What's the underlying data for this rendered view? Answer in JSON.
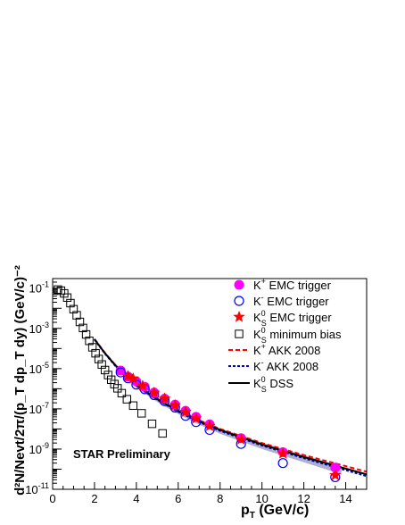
{
  "chart_data": {
    "type": "scatter",
    "title": "",
    "annotation": "STAR Preliminary",
    "xlabel": {
      "main": "p",
      "sub": "T",
      "unit": " (GeV/c)"
    },
    "ylabel": {
      "text": "d²N/Nevt/2π/(p_T dp_T dy) (GeV/c)⁻²"
    },
    "xlim": [
      0,
      15
    ],
    "ylim": [
      1e-11,
      0.3
    ],
    "yscale": "log",
    "x_ticks": [
      0,
      2,
      4,
      6,
      8,
      10,
      12,
      14
    ],
    "y_ticks": [
      {
        "value": 1e-11,
        "base": "10",
        "exp": "-11"
      },
      {
        "value": 1e-09,
        "base": "10",
        "exp": "-9"
      },
      {
        "value": 1e-07,
        "base": "10",
        "exp": "-7"
      },
      {
        "value": 1e-05,
        "base": "10",
        "exp": "-5"
      },
      {
        "value": 0.001,
        "base": "10",
        "exp": "-3"
      },
      {
        "value": 0.1,
        "base": "10",
        "exp": "-1"
      }
    ],
    "legend_position": "top-right",
    "series": [
      {
        "name": "K+ EMC trigger",
        "legend": {
          "pre": "K",
          "sup": "+",
          "sub": "",
          "post": " EMC trigger"
        },
        "marker": "filled-circle",
        "color": "#ff00ff",
        "x": [
          3.25,
          3.6,
          4.0,
          4.4,
          4.85,
          5.35,
          5.85,
          6.35,
          6.85,
          7.5,
          9.0,
          11.0,
          13.5
        ],
        "y": [
          8e-06,
          4e-06,
          2.3e-06,
          1.25e-06,
          6.5e-07,
          3.2e-07,
          1.6e-07,
          8e-08,
          4e-08,
          1.7e-08,
          3.5e-09,
          7e-10,
          1.2e-10
        ]
      },
      {
        "name": "K- EMC trigger",
        "legend": {
          "pre": "K",
          "sup": "-",
          "sub": "",
          "post": " EMC trigger"
        },
        "marker": "open-circle",
        "color": "#0000ff",
        "x": [
          3.25,
          3.6,
          4.0,
          4.4,
          4.85,
          5.35,
          5.85,
          6.35,
          6.85,
          7.5,
          9.0,
          11.0,
          13.5
        ],
        "y": [
          6.5e-06,
          3.3e-06,
          1.6e-06,
          9.5e-07,
          4.8e-07,
          2.4e-07,
          1.15e-07,
          4.5e-08,
          2.2e-08,
          9e-09,
          1.8e-09,
          2e-10,
          4e-11
        ]
      },
      {
        "name": "K0S EMC trigger",
        "legend": {
          "pre": "K",
          "sup": "0",
          "sub": "S",
          "post": " EMC trigger"
        },
        "marker": "filled-star",
        "color": "#ff0000",
        "x": [
          3.6,
          3.85,
          4.3,
          4.85,
          5.35,
          5.85,
          6.35,
          6.85,
          7.5,
          9.0,
          11.0,
          13.5
        ],
        "y": [
          4.2e-06,
          3.2e-06,
          1.4e-06,
          6.3e-07,
          3.2e-07,
          1.5e-07,
          7e-08,
          3.3e-08,
          1.4e-08,
          3e-09,
          6e-10,
          5e-11
        ]
      },
      {
        "name": "K0S minimum bias",
        "legend": {
          "pre": "K",
          "sup": "0",
          "sub": "S",
          "post": " minimum bias"
        },
        "marker": "open-square",
        "color": "#000000",
        "x": [
          0.25,
          0.4,
          0.55,
          0.7,
          0.85,
          1.0,
          1.15,
          1.3,
          1.45,
          1.6,
          1.75,
          1.9,
          2.05,
          2.2,
          2.35,
          2.5,
          2.65,
          2.8,
          2.95,
          3.1,
          3.3,
          3.55,
          3.85,
          4.25,
          4.75,
          5.25
        ],
        "y": [
          0.085,
          0.075,
          0.055,
          0.034,
          0.018,
          0.009,
          0.0045,
          0.0021,
          0.00105,
          0.0005,
          0.00024,
          0.000115,
          5.8e-05,
          3e-05,
          1.6e-05,
          8.5e-06,
          4.8e-06,
          2.8e-06,
          1.7e-06,
          1.05e-06,
          6e-07,
          3e-07,
          1.45e-07,
          6e-08,
          1.8e-08,
          6e-09
        ]
      }
    ],
    "curves": [
      {
        "name": "K+ AKK 2008",
        "legend": {
          "pre": "K",
          "sup": "+",
          "sub": "",
          "post": " AKK 2008"
        },
        "style": "dashed",
        "color": "#ff0000",
        "x": [
          2.0,
          2.5,
          3.0,
          3.5,
          4.0,
          5.0,
          6.0,
          7.0,
          8.0,
          10.0,
          12.0,
          15.0
        ],
        "y": [
          0.0003,
          6e-05,
          1.5e-05,
          4.5e-06,
          1.6e-06,
          3.2e-07,
          8.5e-08,
          2.7e-08,
          1e-08,
          2e-09,
          5e-10,
          7.5e-11
        ]
      },
      {
        "name": "K- AKK 2008",
        "legend": {
          "pre": "K",
          "sup": "-",
          "sub": "",
          "post": " AKK 2008"
        },
        "style": "dotted",
        "color": "#0000cc",
        "x": [
          2.0,
          2.5,
          3.0,
          3.5,
          4.0,
          5.0,
          6.0,
          7.0,
          8.0,
          10.0,
          12.0,
          15.0
        ],
        "y": [
          0.00028,
          5.5e-05,
          1.35e-05,
          4e-06,
          1.4e-06,
          2.8e-07,
          7.2e-08,
          2.2e-08,
          8e-09,
          1.5e-09,
          3.5e-10,
          4.5e-11
        ]
      },
      {
        "name": "K0S DSS",
        "legend": {
          "pre": "K",
          "sup": "0",
          "sub": "S",
          "post": " DSS"
        },
        "style": "solid",
        "color": "#000000",
        "x": [
          2.0,
          2.5,
          3.0,
          3.5,
          4.0,
          5.0,
          6.0,
          7.0,
          8.0,
          10.0,
          12.0,
          15.0
        ],
        "y": [
          0.00029,
          5.8e-05,
          1.45e-05,
          4.3e-06,
          1.5e-06,
          3e-07,
          7.8e-08,
          2.4e-08,
          9e-09,
          1.7e-09,
          4e-10,
          5.5e-11
        ]
      }
    ],
    "bands": [
      {
        "name": "DSS uncertainty band",
        "color": "#b0b0cc",
        "x": [
          3.0,
          4.0,
          5.0,
          6.0,
          7.0,
          8.0,
          10.0,
          12.0,
          13.8
        ],
        "y_low": [
          1.1e-05,
          1.1e-06,
          2.2e-07,
          5.5e-08,
          1.6e-08,
          5.8e-09,
          1e-09,
          2.2e-10,
          5.5e-11
        ],
        "y_high": [
          1.8e-05,
          1.8e-06,
          3.6e-07,
          9.5e-08,
          2.9e-08,
          1.1e-08,
          2.1e-09,
          5e-10,
          1.4e-10
        ]
      }
    ]
  }
}
